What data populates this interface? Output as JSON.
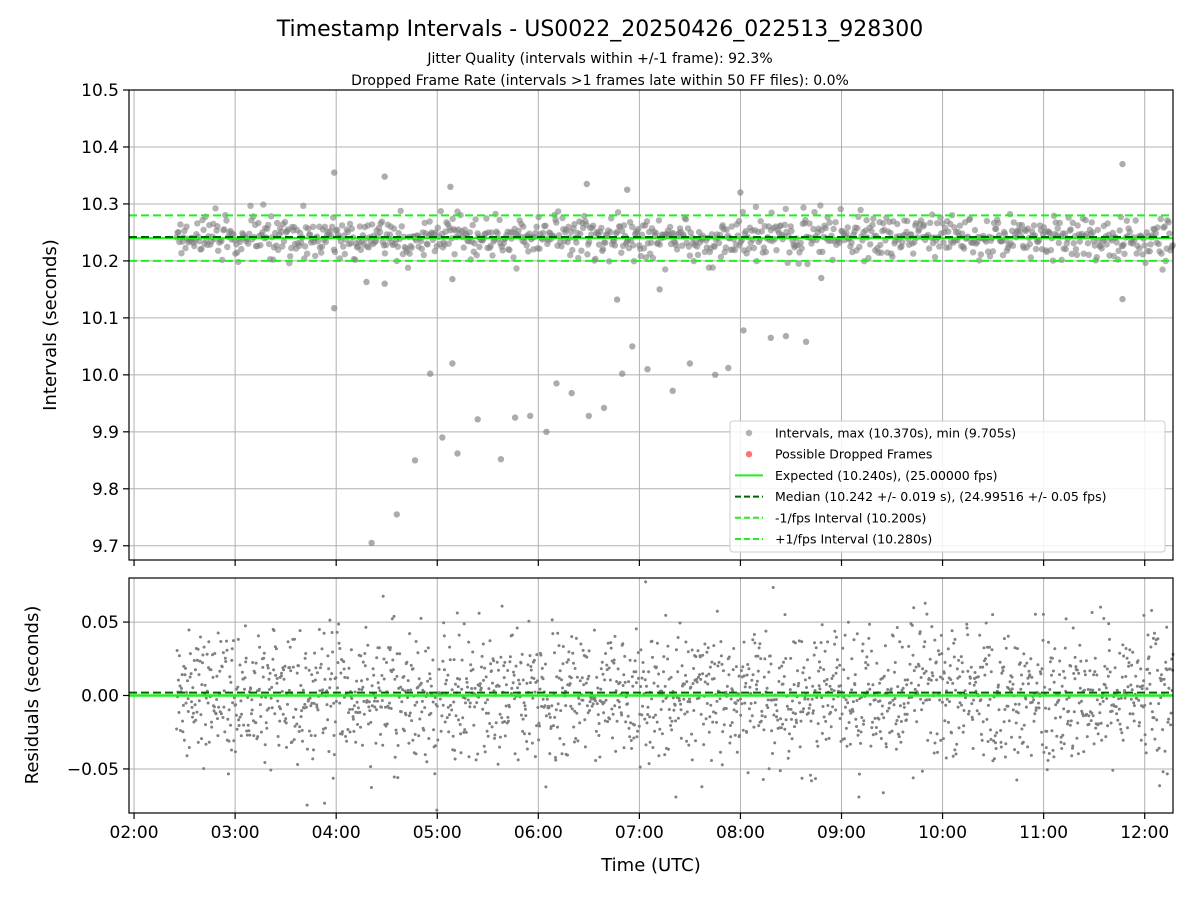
{
  "chart_data": {
    "type": "scatter",
    "title": "Timestamp Intervals - US0022_20250426_022513_928300",
    "subtitle_lines": [
      "Jitter Quality (intervals within +/-1 frame): 92.3%",
      "Dropped Frame Rate (intervals >1 frames late within 50 FF files): 0.0%"
    ],
    "xlabel": "Time (UTC)",
    "x_ticks": [
      "02:00",
      "03:00",
      "04:00",
      "05:00",
      "06:00",
      "07:00",
      "08:00",
      "09:00",
      "10:00",
      "11:00",
      "12:00"
    ],
    "x_range_hours": [
      1.95,
      12.28
    ],
    "data_start_hour": 2.42,
    "data_end_hour": 12.28,
    "grid": true,
    "panels": {
      "intervals": {
        "ylabel": "Intervals (seconds)",
        "ylim": [
          9.675,
          10.5
        ],
        "y_ticks": [
          "9.7",
          "9.8",
          "9.9",
          "10.0",
          "10.1",
          "10.2",
          "10.3",
          "10.4",
          "10.5"
        ],
        "y_tick_values": [
          9.7,
          9.8,
          9.9,
          10.0,
          10.1,
          10.2,
          10.3,
          10.4,
          10.5
        ],
        "median": 10.242,
        "median_std": 0.019,
        "max": 10.37,
        "min": 9.705,
        "dense_band": [
          10.19,
          10.29
        ],
        "outliers": [
          [
            3.98,
            10.355
          ],
          [
            4.48,
            10.348
          ],
          [
            5.13,
            10.33
          ],
          [
            6.48,
            10.335
          ],
          [
            6.88,
            10.325
          ],
          [
            8.0,
            10.32
          ],
          [
            11.78,
            10.37
          ],
          [
            3.98,
            10.117
          ],
          [
            4.3,
            10.163
          ],
          [
            4.48,
            10.16
          ],
          [
            5.15,
            10.168
          ],
          [
            7.2,
            10.15
          ],
          [
            8.8,
            10.17
          ],
          [
            6.78,
            10.132
          ],
          [
            11.78,
            10.133
          ],
          [
            4.35,
            9.705
          ],
          [
            4.6,
            9.755
          ],
          [
            4.78,
            9.85
          ],
          [
            4.93,
            10.002
          ],
          [
            5.05,
            9.89
          ],
          [
            5.15,
            10.02
          ],
          [
            5.2,
            9.862
          ],
          [
            5.4,
            9.922
          ],
          [
            5.63,
            9.852
          ],
          [
            5.77,
            9.925
          ],
          [
            5.92,
            9.928
          ],
          [
            6.08,
            9.9
          ],
          [
            6.18,
            9.985
          ],
          [
            6.33,
            9.968
          ],
          [
            6.5,
            9.928
          ],
          [
            6.65,
            9.942
          ],
          [
            6.83,
            10.002
          ],
          [
            6.93,
            10.05
          ],
          [
            7.08,
            10.01
          ],
          [
            7.33,
            9.972
          ],
          [
            7.5,
            10.02
          ],
          [
            7.75,
            10.0
          ],
          [
            7.88,
            10.012
          ],
          [
            8.03,
            10.078
          ],
          [
            8.3,
            10.065
          ],
          [
            8.45,
            10.068
          ],
          [
            8.65,
            10.058
          ]
        ]
      },
      "residuals": {
        "ylabel": "Residuals (seconds)",
        "ylim": [
          -0.08,
          0.08
        ],
        "y_ticks": [
          "−0.05",
          "0.00",
          "0.05"
        ],
        "y_tick_values": [
          -0.05,
          0.0,
          0.05
        ],
        "median_line": 0.002,
        "std": 0.025
      }
    },
    "reference_lines": {
      "expected": 10.24,
      "median": 10.242,
      "minus_one_frame": 10.2,
      "plus_one_frame": 10.28
    },
    "legend": {
      "position": "lower-right",
      "entries": [
        {
          "label": "Intervals, max (10.370s), min (9.705s)",
          "kind": "marker",
          "color": "#808080"
        },
        {
          "label": "Possible Dropped Frames",
          "kind": "marker",
          "color": "#ff5a5a"
        },
        {
          "label": "Expected (10.240s), (25.00000 fps)",
          "kind": "solid",
          "color": "#22ee22"
        },
        {
          "label": "Median (10.242 +/- 0.019 s), (24.99516 +/- 0.05 fps)",
          "kind": "dashed",
          "color": "#006400"
        },
        {
          "label": "-1/fps Interval (10.200s)",
          "kind": "dashed",
          "color": "#22ee22"
        },
        {
          "label": "+1/fps Interval (10.280s)",
          "kind": "dashed",
          "color": "#22ee22"
        }
      ]
    },
    "colors": {
      "points": "#808080",
      "expected": "#22ee22",
      "median": "#006400",
      "frame_bounds": "#22ee22",
      "grid": "#b0b0b0"
    }
  }
}
